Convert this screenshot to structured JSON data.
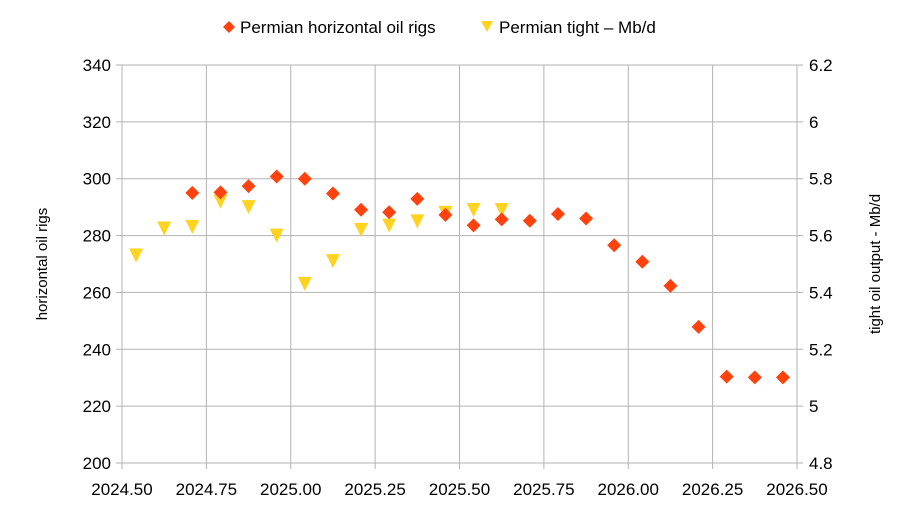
{
  "chart_data": {
    "type": "scatter",
    "title": "",
    "legend_position": "top-center",
    "grid": true,
    "xlabel": "",
    "x_range": [
      2024.5,
      2026.5
    ],
    "x_ticks": [
      "2024.50",
      "2024.75",
      "2025.00",
      "2025.25",
      "2025.50",
      "2025.75",
      "2026.00",
      "2026.25",
      "2026.50"
    ],
    "x_tick_values": [
      2024.5,
      2024.75,
      2025.0,
      2025.25,
      2025.5,
      2025.75,
      2026.0,
      2026.25,
      2026.5
    ],
    "y_left": {
      "label": "horizontal oil rigs",
      "range": [
        200,
        340
      ],
      "ticks": [
        "340",
        "320",
        "300",
        "280",
        "260",
        "240",
        "220",
        "200"
      ],
      "tick_values": [
        340,
        320,
        300,
        280,
        260,
        240,
        220,
        200
      ]
    },
    "y_right": {
      "label": "tight oil output - Mb/d",
      "range": [
        4.8,
        6.2
      ],
      "ticks": [
        "6.2",
        "6",
        "5.8",
        "5.6",
        "5.4",
        "5.2",
        "5",
        "4.8"
      ],
      "tick_values": [
        6.2,
        6.0,
        5.8,
        5.6,
        5.4,
        5.2,
        5.0,
        4.8
      ]
    },
    "series": [
      {
        "name": "Permian horizontal oil rigs",
        "axis": "left",
        "marker": "diamond",
        "color": "#ff420e",
        "x": [
          2024.7083,
          2024.7917,
          2024.875,
          2024.9583,
          2025.0417,
          2025.125,
          2025.2083,
          2025.2917,
          2025.375,
          2025.4583,
          2025.5417,
          2025.625,
          2025.7083,
          2025.7917,
          2025.875,
          2025.9583,
          2026.0417,
          2026.125,
          2026.2083,
          2026.2917,
          2026.375,
          2026.4583
        ],
        "y": [
          295,
          295.2,
          297.4,
          300.8,
          300,
          294.8,
          289.1,
          288.2,
          292.9,
          287.3,
          283.6,
          285.7,
          285.2,
          287.6,
          286.0,
          276.6,
          270.8,
          262.3,
          247.9,
          230.4,
          230.1,
          230.1
        ]
      },
      {
        "name": "Permian tight – Mb/d",
        "axis": "right",
        "marker": "triangle-down",
        "color": "#ffd320",
        "x": [
          2024.5417,
          2024.625,
          2024.7083,
          2024.7917,
          2024.875,
          2024.9583,
          2025.0417,
          2025.125,
          2025.2083,
          2025.2917,
          2025.375,
          2025.4583,
          2025.5417,
          2025.625
        ],
        "y": [
          5.53,
          5.625,
          5.63,
          5.72,
          5.7,
          5.6,
          5.43,
          5.51,
          5.62,
          5.635,
          5.65,
          5.68,
          5.69,
          5.69
        ]
      }
    ]
  }
}
